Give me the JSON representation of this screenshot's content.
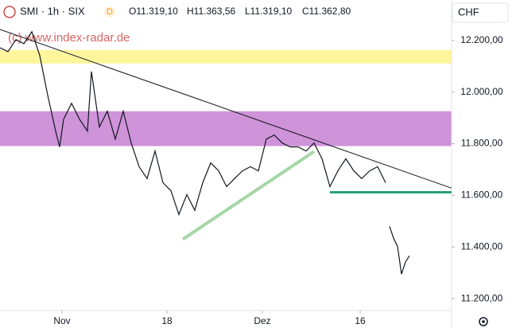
{
  "header": {
    "symbol": "SMI · 1h · SIX",
    "badge": "D",
    "ohlc": [
      "O11.319,10",
      "H11.363,56",
      "L11.319,10",
      "C11.362,80"
    ],
    "currency": "CHF",
    "watermark": "(c) www.index-radar.de"
  },
  "chart_data": {
    "type": "line",
    "x": [
      0,
      2,
      4,
      6,
      8,
      10,
      12,
      14,
      15,
      16,
      18,
      20,
      22,
      23,
      25,
      27,
      29,
      31,
      33,
      35,
      37,
      39,
      41,
      43,
      45,
      47,
      49,
      51,
      53,
      55,
      57,
      59,
      61,
      63,
      65,
      67,
      69,
      71,
      73,
      75,
      77,
      79,
      81,
      83,
      85,
      87,
      89,
      91,
      93,
      95,
      97,
      97.5,
      98,
      99,
      100,
      101,
      102,
      103
    ],
    "series": [
      {
        "color": "#131722",
        "values": [
          12172,
          12157,
          12203,
          12188,
          12234,
          12142,
          11988,
          11849,
          11788,
          11895,
          11957,
          11895,
          11849,
          12080,
          11865,
          11926,
          11818,
          11926,
          11803,
          11711,
          11665,
          11772,
          11649,
          11618,
          11526,
          11603,
          11542,
          11649,
          11726,
          11695,
          11634,
          11665,
          11695,
          11711,
          11695,
          11818,
          11834,
          11803,
          11788,
          11788,
          11772,
          11803,
          11742,
          11634,
          11695,
          11742,
          11695,
          11665,
          11695,
          11711,
          11649,
          null,
          11480,
          11434,
          11403,
          11295,
          11342,
          11366
        ]
      }
    ],
    "xlim": [
      0,
      113.6
    ],
    "ylim": [
      11154,
      12357
    ],
    "xticks": [
      {
        "value": 15.6,
        "label": "Nov"
      },
      {
        "value": 42,
        "label": "18"
      },
      {
        "value": 66,
        "label": "Dez"
      },
      {
        "value": 90.6,
        "label": "16"
      }
    ],
    "yticks": [
      {
        "value": 11200,
        "label": "11.200,00"
      },
      {
        "value": 11400,
        "label": "11.400,00"
      },
      {
        "value": 11600,
        "label": "11.600,00"
      },
      {
        "value": 11800,
        "label": "11.800,00"
      },
      {
        "value": 12000,
        "label": "12.000,00"
      },
      {
        "value": 12200,
        "label": "12.200,00"
      }
    ],
    "grid": false,
    "zones": [
      {
        "from": 12111,
        "to": 12163,
        "color": "#fff59d"
      },
      {
        "from": 11791,
        "to": 11926,
        "color": "#ce93d8"
      }
    ],
    "lines": [
      {
        "x1": 0,
        "y1": 12243,
        "x2": 113.6,
        "y2": 11628,
        "color": "#131722",
        "width": 1
      },
      {
        "x1": 46,
        "y1": 11430,
        "x2": 79,
        "y2": 11770,
        "color": "#a5d6a7",
        "width": 4
      },
      {
        "x1": 83,
        "y1": 11612,
        "x2": 113.6,
        "y2": 11612,
        "color": "#26a17b",
        "width": 3
      }
    ]
  }
}
